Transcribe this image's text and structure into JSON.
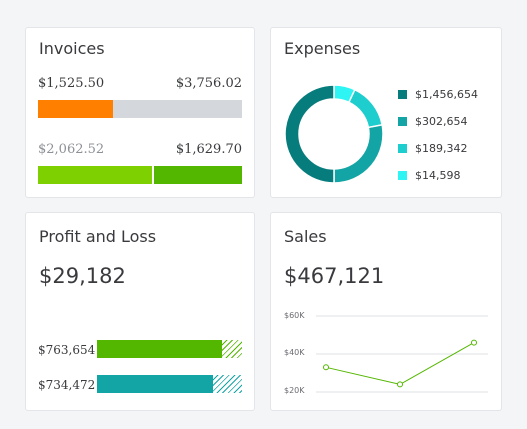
{
  "invoices": {
    "title": "Invoices",
    "unpaid_amount": "$1,525.50",
    "unpaid_total": "$3,756.02",
    "paid_amount": "$2,062.52",
    "paid_total": "$1,629.70",
    "unpaid_fraction": 0.37,
    "paid_fraction": 0.56,
    "colors": {
      "unpaid": "#ff8000",
      "unpaid_rest": "#d4d7dc",
      "paid_light": "#7fd000",
      "paid_dark": "#53b700"
    }
  },
  "expenses": {
    "title": "Expenses",
    "legend": [
      {
        "label": "$1,456,654",
        "color": "#077c7c"
      },
      {
        "label": "$302,654",
        "color": "#13a5a5"
      },
      {
        "label": "$189,342",
        "color": "#1ecdcd"
      },
      {
        "label": "$14,598",
        "color": "#2ff4f4"
      }
    ],
    "donut_fractions": [
      0.5,
      0.28,
      0.15,
      0.07
    ]
  },
  "profit_loss": {
    "title": "Profit and Loss",
    "net": "$29,182",
    "rows": [
      {
        "label": "$763,654",
        "solid_fraction": 0.86,
        "color": "#53b700"
      },
      {
        "label": "$734,472",
        "solid_fraction": 0.8,
        "color": "#13a5a5"
      }
    ]
  },
  "sales": {
    "title": "Sales",
    "total": "$467,121",
    "y_ticks": [
      "$60K",
      "$40K",
      "$20K"
    ],
    "line_color": "#53b700"
  },
  "chart_data": {
    "type": "line",
    "x": [
      1,
      2,
      3
    ],
    "values": [
      33000,
      24000,
      46000
    ],
    "ylim": [
      20000,
      60000
    ],
    "yticks": [
      "$60K",
      "$40K",
      "$20K"
    ],
    "xlabel": "",
    "ylabel": ""
  }
}
